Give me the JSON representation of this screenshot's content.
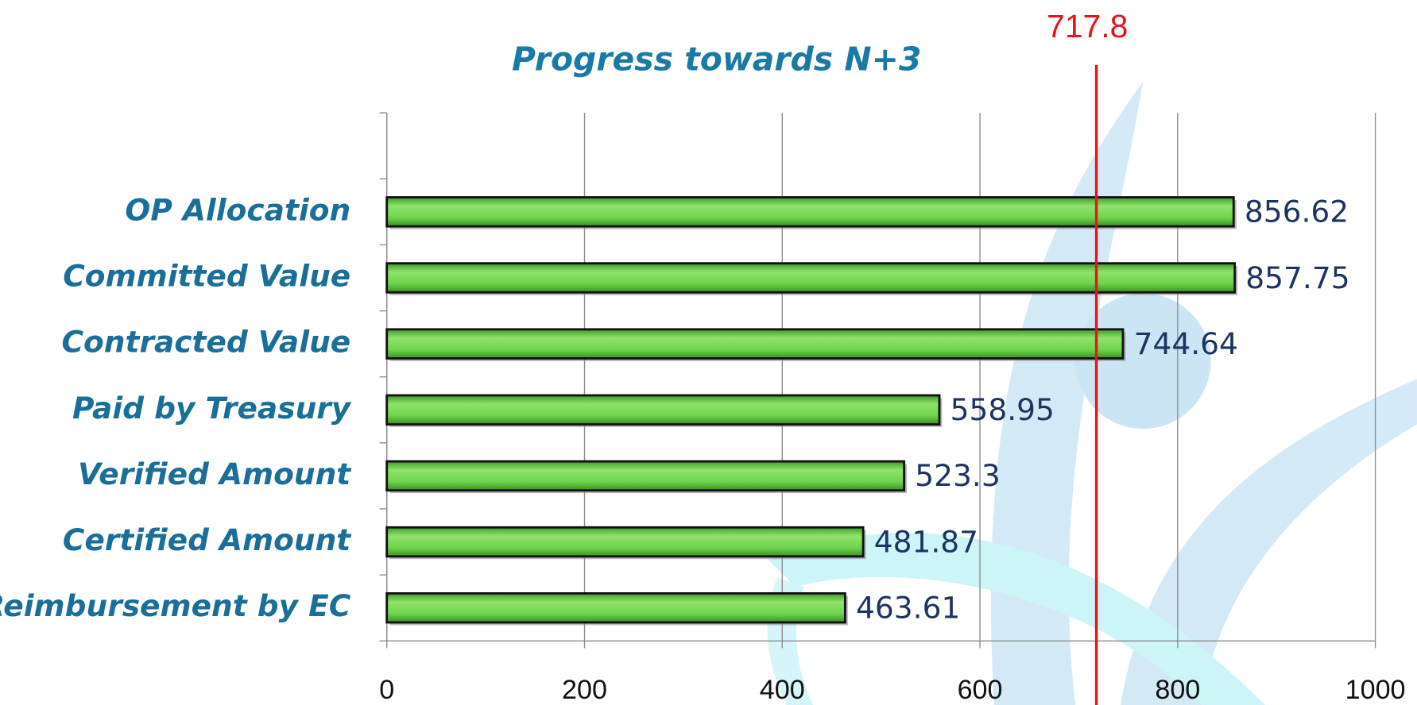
{
  "chart_data": {
    "type": "bar",
    "orientation": "horizontal",
    "title": "Progress towards N+3",
    "categories": [
      null,
      "OP Allocation",
      "Committed Value",
      "Contracted Value",
      "Paid by Treasury",
      "Verified Amount",
      "Certified Amount",
      "Reimbursement by EC"
    ],
    "values": [
      null,
      856.62,
      857.75,
      744.64,
      558.95,
      523.3,
      481.87,
      463.61
    ],
    "color": "#5fcf3f",
    "xlim": [
      0,
      1000
    ],
    "xticks": [
      0,
      200,
      400,
      600,
      800,
      1000
    ],
    "grid": true,
    "reference_line": {
      "value": 717.8,
      "color": "#e8141b"
    }
  }
}
